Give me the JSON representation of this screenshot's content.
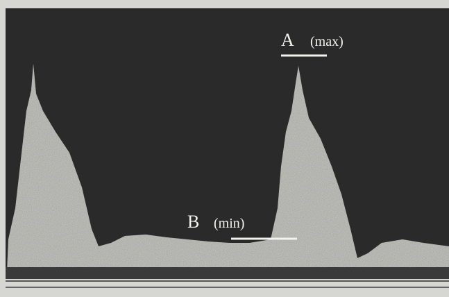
{
  "annotations": [
    {
      "letter": "A",
      "note": "(max)"
    },
    {
      "letter": "B",
      "note": "(min)"
    }
  ]
}
